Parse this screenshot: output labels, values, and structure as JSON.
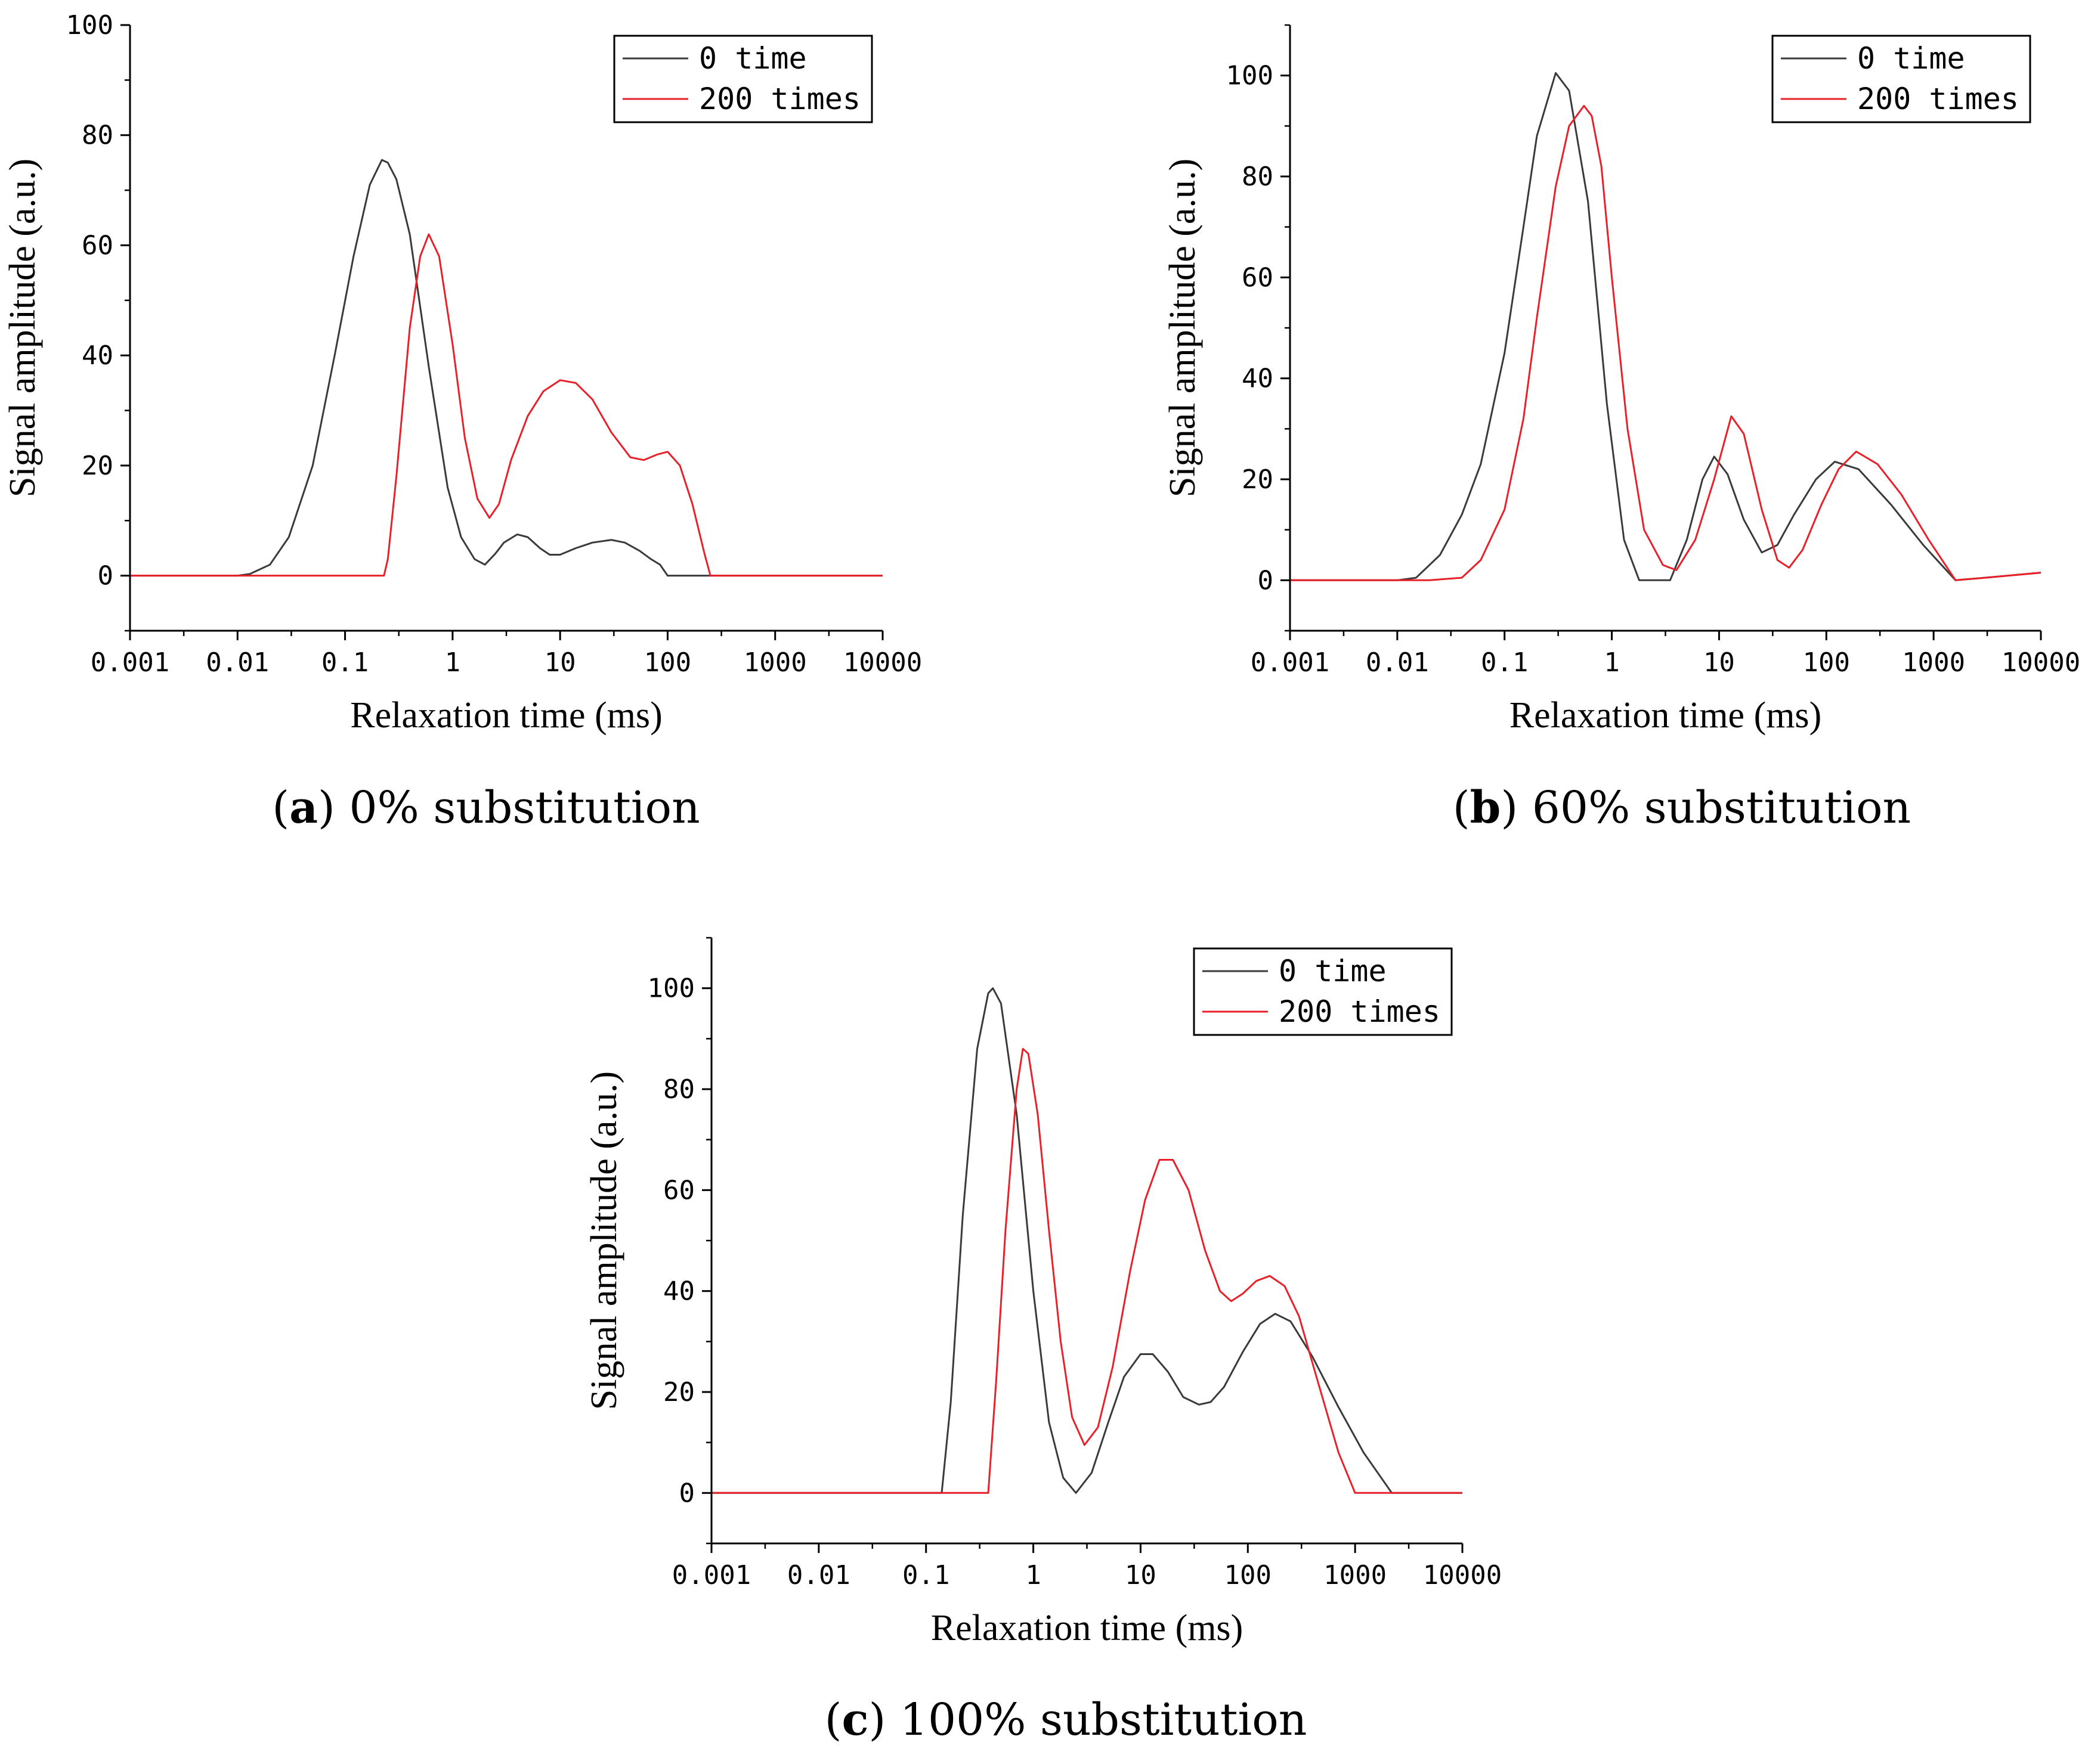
{
  "figure": {
    "captions": [
      {
        "letter": "a",
        "text": "0% substitution"
      },
      {
        "letter": "b",
        "text": "60% substitution"
      },
      {
        "letter": "c",
        "text": "100% substitution"
      }
    ]
  },
  "chart_data": [
    {
      "id": "a",
      "type": "line",
      "title": "",
      "xlabel": "Relaxation time (ms)",
      "ylabel": "Signal amplitude (a.u.)",
      "xscale": "log",
      "xlim": [
        0.001,
        10000
      ],
      "ylim": [
        -10,
        100
      ],
      "xticks": [
        0.001,
        0.01,
        0.1,
        1,
        10,
        100,
        1000,
        10000
      ],
      "xtick_labels": [
        "0.001",
        "0.01",
        "0.1",
        "1",
        "10",
        "100",
        "1000",
        "10000"
      ],
      "yticks": [
        0,
        20,
        40,
        60,
        80,
        100
      ],
      "ytick_labels": [
        "0",
        "20",
        "40",
        "60",
        "80",
        "100"
      ],
      "legend_position": "top-right",
      "series": [
        {
          "name": "0 time",
          "color": "#3a3a3a",
          "x": [
            0.001,
            0.01,
            0.013,
            0.02,
            0.03,
            0.05,
            0.08,
            0.12,
            0.17,
            0.22,
            0.25,
            0.3,
            0.4,
            0.6,
            0.9,
            1.2,
            1.6,
            2,
            2.5,
            3,
            4,
            5,
            6.5,
            8,
            10,
            14,
            20,
            30,
            40,
            55,
            70,
            85,
            100,
            10000
          ],
          "y": [
            0,
            0,
            0.3,
            2,
            7,
            20,
            40,
            58,
            71,
            75.5,
            75,
            72,
            62,
            38,
            16,
            7,
            3,
            2,
            4,
            6,
            7.5,
            7,
            5,
            3.8,
            3.8,
            5,
            6,
            6.5,
            6,
            4.5,
            3,
            2,
            0,
            0
          ]
        },
        {
          "name": "200 times",
          "color": "#e8202a",
          "x": [
            0.001,
            0.23,
            0.25,
            0.3,
            0.4,
            0.5,
            0.6,
            0.75,
            1,
            1.3,
            1.7,
            2.2,
            2.7,
            3.5,
            5,
            7,
            10,
            14,
            20,
            30,
            45,
            60,
            80,
            100,
            130,
            170,
            220,
            250,
            10000
          ],
          "y": [
            0,
            0,
            3,
            18,
            45,
            58,
            62,
            58,
            42,
            25,
            14,
            10.5,
            13,
            21,
            29,
            33.5,
            35.5,
            35,
            32,
            26,
            21.5,
            21,
            22,
            22.5,
            20,
            13,
            4,
            0,
            0
          ]
        }
      ]
    },
    {
      "id": "b",
      "type": "line",
      "title": "",
      "xlabel": "Relaxation time (ms)",
      "ylabel": "Signal amplitude (a.u.)",
      "xscale": "log",
      "xlim": [
        0.001,
        10000
      ],
      "ylim": [
        -10,
        110
      ],
      "xticks": [
        0.001,
        0.01,
        0.1,
        1,
        10,
        100,
        1000,
        10000
      ],
      "xtick_labels": [
        "0.001",
        "0.01",
        "0.1",
        "1",
        "10",
        "100",
        "1000",
        "10000"
      ],
      "yticks": [
        0,
        20,
        40,
        60,
        80,
        100
      ],
      "ytick_labels": [
        "0",
        "20",
        "40",
        "60",
        "80",
        "100"
      ],
      "legend_position": "top-right",
      "series": [
        {
          "name": "0 time",
          "color": "#3a3a3a",
          "x": [
            0.001,
            0.01,
            0.015,
            0.025,
            0.04,
            0.06,
            0.1,
            0.15,
            0.2,
            0.3,
            0.4,
            0.6,
            0.9,
            1.3,
            1.8,
            2.5,
            3.5,
            5,
            7,
            9,
            12,
            17,
            25,
            35,
            50,
            80,
            120,
            200,
            400,
            800,
            1600,
            3000,
            10000
          ],
          "y": [
            0,
            0,
            0.5,
            5,
            13,
            23,
            45,
            70,
            88,
            100.5,
            97,
            75,
            35,
            8,
            0,
            0,
            0,
            8,
            20,
            24.5,
            21,
            12,
            5.5,
            7,
            13,
            20,
            23.5,
            22,
            15,
            7,
            0,
            0.5,
            1.5
          ]
        },
        {
          "name": "200 times",
          "color": "#e8202a",
          "x": [
            0.001,
            0.01,
            0.02,
            0.04,
            0.06,
            0.1,
            0.15,
            0.2,
            0.3,
            0.4,
            0.55,
            0.65,
            0.8,
            1,
            1.4,
            2,
            3,
            4,
            6,
            9,
            13,
            17,
            25,
            35,
            45,
            60,
            90,
            130,
            190,
            300,
            500,
            900,
            1600,
            3000,
            10000
          ],
          "y": [
            0,
            0,
            0,
            0.5,
            4,
            14,
            32,
            52,
            78,
            90,
            94,
            92,
            82,
            60,
            30,
            10,
            3,
            2,
            8,
            20,
            32.5,
            29,
            14,
            4,
            2.5,
            6,
            15,
            22,
            25.5,
            23,
            17,
            8,
            0,
            0.5,
            1.5
          ]
        }
      ]
    },
    {
      "id": "c",
      "type": "line",
      "title": "",
      "xlabel": "Relaxation time (ms)",
      "ylabel": "Signal amplitude (a.u.)",
      "xscale": "log",
      "xlim": [
        0.001,
        10000
      ],
      "ylim": [
        -10,
        110
      ],
      "xticks": [
        0.001,
        0.01,
        0.1,
        1,
        10,
        100,
        1000,
        10000
      ],
      "xtick_labels": [
        "0.001",
        "0.01",
        "0.1",
        "1",
        "10",
        "100",
        "1000",
        "10000"
      ],
      "yticks": [
        0,
        20,
        40,
        60,
        80,
        100
      ],
      "ytick_labels": [
        "0",
        "20",
        "40",
        "60",
        "80",
        "100"
      ],
      "legend_position": "top-right",
      "series": [
        {
          "name": "0 time",
          "color": "#3a3a3a",
          "x": [
            0.001,
            0.14,
            0.17,
            0.22,
            0.3,
            0.38,
            0.42,
            0.5,
            0.7,
            1,
            1.4,
            1.9,
            2.5,
            3.5,
            5,
            7,
            10,
            13,
            18,
            25,
            35,
            45,
            60,
            90,
            130,
            180,
            250,
            400,
            700,
            1200,
            2200,
            10000
          ],
          "y": [
            0,
            0,
            18,
            55,
            88,
            99,
            100,
            97,
            75,
            40,
            14,
            3,
            0,
            4,
            14,
            23,
            27.5,
            27.5,
            24,
            19,
            17.5,
            18,
            21,
            28,
            33.5,
            35.5,
            34,
            27,
            17,
            8,
            0,
            0
          ]
        },
        {
          "name": "200 times",
          "color": "#e8202a",
          "x": [
            0.001,
            0.38,
            0.45,
            0.55,
            0.7,
            0.8,
            0.9,
            1.1,
            1.4,
            1.8,
            2.3,
            3,
            4,
            5.5,
            8,
            11,
            15,
            20,
            28,
            40,
            55,
            70,
            90,
            120,
            160,
            220,
            300,
            450,
            700,
            1000,
            10000
          ],
          "y": [
            0,
            0,
            22,
            52,
            80,
            88,
            87,
            75,
            52,
            30,
            15,
            9.5,
            13,
            25,
            44,
            58,
            66,
            66,
            60,
            48,
            40,
            38,
            39.5,
            42,
            43,
            41,
            35,
            22,
            8,
            0,
            0
          ]
        }
      ]
    }
  ]
}
